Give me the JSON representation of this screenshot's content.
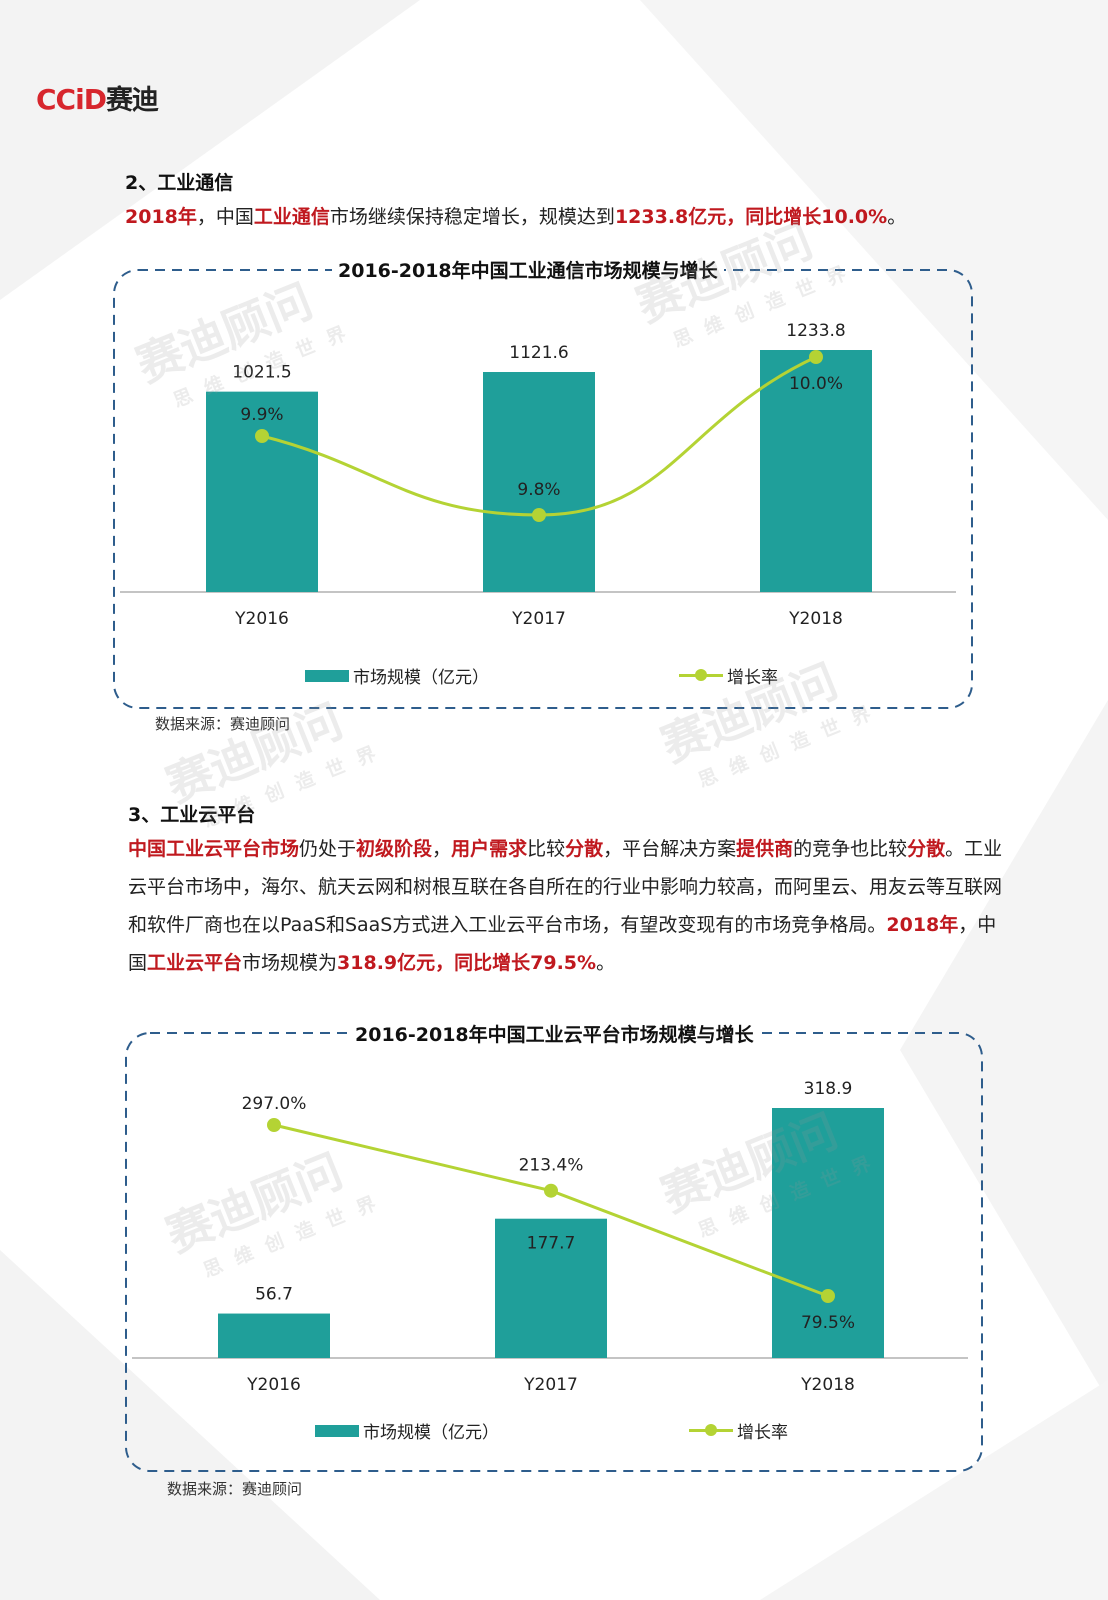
{
  "logo": {
    "latin": "CCiD",
    "cn": "赛迪"
  },
  "watermark": {
    "main": "赛迪顾问",
    "sub": "思维创造世界"
  },
  "section2": {
    "heading": "2、工业通信",
    "para": [
      {
        "t": "2018年",
        "hl": true
      },
      {
        "t": "，中国",
        "hl": false
      },
      {
        "t": "工业通信",
        "hl": true
      },
      {
        "t": "市场继续保持稳定增长，规模达到",
        "hl": false
      },
      {
        "t": "1233.8亿元，同比增长10.0%",
        "hl": true
      },
      {
        "t": "。",
        "hl": false
      }
    ],
    "source": "数据来源：赛迪顾问"
  },
  "section3": {
    "heading": "3、工业云平台",
    "para": [
      {
        "t": "中国工业云平台市场",
        "hl": true
      },
      {
        "t": "仍处于",
        "hl": false
      },
      {
        "t": "初级阶段",
        "hl": true
      },
      {
        "t": "，",
        "hl": false
      },
      {
        "t": "用户需求",
        "hl": true
      },
      {
        "t": "比较",
        "hl": false
      },
      {
        "t": "分散",
        "hl": true
      },
      {
        "t": "，平台解决方案",
        "hl": false
      },
      {
        "t": "提供商",
        "hl": true
      },
      {
        "t": "的竞争也比较",
        "hl": false
      },
      {
        "t": "分散",
        "hl": true
      },
      {
        "t": "。工业云平台市场中，海尔、航天云网和树根互联在各自所在的行业中影响力较高，而阿里云、用友云等互联网和软件厂商也在以PaaS和SaaS方式进入工业云平台市场，有望改变现有的市场竞争格局。",
        "hl": false
      },
      {
        "t": "2018年",
        "hl": true
      },
      {
        "t": "，中国",
        "hl": false
      },
      {
        "t": "工业云平台",
        "hl": true
      },
      {
        "t": "市场规模为",
        "hl": false
      },
      {
        "t": "318.9亿元，同比增长79.5%",
        "hl": true
      },
      {
        "t": "。",
        "hl": false
      }
    ],
    "source": "数据来源：赛迪顾问"
  },
  "colors": {
    "bar": "#1f9f9a",
    "line": "#b4d334",
    "highlight": "#c0191f",
    "frame": "#2e5d8c"
  },
  "chart_data": [
    {
      "type": "bar",
      "title": "2016-2018年中国工业通信市场规模与增长",
      "categories": [
        "Y2016",
        "Y2017",
        "Y2018"
      ],
      "series": [
        {
          "name": "市场规模（亿元）",
          "type": "bar",
          "values": [
            1021.5,
            1121.6,
            1233.8
          ],
          "labels": [
            "1021.5",
            "1121.6",
            "1233.8"
          ]
        },
        {
          "name": "增长率",
          "type": "line",
          "values": [
            9.9,
            9.8,
            10.0
          ],
          "labels": [
            "9.9%",
            "9.8%",
            "10.0%"
          ]
        }
      ],
      "legend": "bottom",
      "grid": false
    },
    {
      "type": "bar",
      "title": "2016-2018年中国工业云平台市场规模与增长",
      "categories": [
        "Y2016",
        "Y2017",
        "Y2018"
      ],
      "series": [
        {
          "name": "市场规模（亿元）",
          "type": "bar",
          "values": [
            56.7,
            177.7,
            318.9
          ],
          "labels": [
            "56.7",
            "177.7",
            "318.9"
          ]
        },
        {
          "name": "增长率",
          "type": "line",
          "values": [
            297.0,
            213.4,
            79.5
          ],
          "labels": [
            "297.0%",
            "213.4%",
            "79.5%"
          ]
        }
      ],
      "legend": "bottom",
      "grid": false
    }
  ]
}
